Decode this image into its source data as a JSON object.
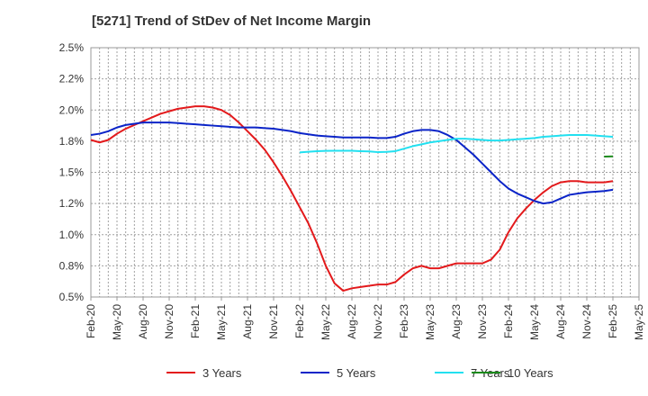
{
  "chart_data": {
    "type": "line",
    "title": "[5271]  Trend of StDev of Net Income Margin",
    "xlabel": "",
    "ylabel": "",
    "x_ticks": [
      "Feb-20",
      "May-20",
      "Aug-20",
      "Nov-20",
      "Feb-21",
      "May-21",
      "Aug-21",
      "Nov-21",
      "Feb-22",
      "May-22",
      "Aug-22",
      "Nov-22",
      "Feb-23",
      "May-23",
      "Aug-23",
      "Nov-23",
      "Feb-24",
      "May-24",
      "Aug-24",
      "Nov-24",
      "Feb-25",
      "May-25"
    ],
    "y_ticks": [
      "0.5%",
      "0.8%",
      "1.0%",
      "1.2%",
      "1.5%",
      "1.8%",
      "2.0%",
      "2.2%",
      "2.5%"
    ],
    "ylim": [
      0.5,
      2.5
    ],
    "grid": true,
    "legend_position": "bottom",
    "series": [
      {
        "name": "3 Years",
        "color": "#e31a1c",
        "points": [
          [
            "Feb-20",
            1.76
          ],
          [
            "Mar-20",
            1.74
          ],
          [
            "Apr-20",
            1.76
          ],
          [
            "May-20",
            1.81
          ],
          [
            "Jun-20",
            1.85
          ],
          [
            "Jul-20",
            1.88
          ],
          [
            "Aug-20",
            1.91
          ],
          [
            "Sep-20",
            1.94
          ],
          [
            "Oct-20",
            1.97
          ],
          [
            "Nov-20",
            1.99
          ],
          [
            "Dec-20",
            2.01
          ],
          [
            "Jan-21",
            2.02
          ],
          [
            "Feb-21",
            2.03
          ],
          [
            "Mar-21",
            2.03
          ],
          [
            "Apr-21",
            2.02
          ],
          [
            "May-21",
            2.0
          ],
          [
            "Jun-21",
            1.96
          ],
          [
            "Jul-21",
            1.9
          ],
          [
            "Aug-21",
            1.83
          ],
          [
            "Sep-21",
            1.76
          ],
          [
            "Oct-21",
            1.68
          ],
          [
            "Nov-21",
            1.58
          ],
          [
            "Dec-21",
            1.47
          ],
          [
            "Jan-22",
            1.35
          ],
          [
            "Feb-22",
            1.22
          ],
          [
            "Mar-22",
            1.09
          ],
          [
            "Apr-22",
            0.93
          ],
          [
            "May-22",
            0.75
          ],
          [
            "Jun-22",
            0.61
          ],
          [
            "Jul-22",
            0.55
          ],
          [
            "Aug-22",
            0.57
          ],
          [
            "Sep-22",
            0.58
          ],
          [
            "Oct-22",
            0.59
          ],
          [
            "Nov-22",
            0.6
          ],
          [
            "Dec-22",
            0.6
          ],
          [
            "Jan-23",
            0.62
          ],
          [
            "Feb-23",
            0.68
          ],
          [
            "Mar-23",
            0.73
          ],
          [
            "Apr-23",
            0.75
          ],
          [
            "May-23",
            0.73
          ],
          [
            "Jun-23",
            0.73
          ],
          [
            "Jul-23",
            0.75
          ],
          [
            "Aug-23",
            0.77
          ],
          [
            "Sep-23",
            0.77
          ],
          [
            "Oct-23",
            0.77
          ],
          [
            "Nov-23",
            0.77
          ],
          [
            "Dec-23",
            0.8
          ],
          [
            "Jan-24",
            0.88
          ],
          [
            "Feb-24",
            1.02
          ],
          [
            "Mar-24",
            1.13
          ],
          [
            "Apr-24",
            1.21
          ],
          [
            "May-24",
            1.28
          ],
          [
            "Jun-24",
            1.34
          ],
          [
            "Jul-24",
            1.39
          ],
          [
            "Aug-24",
            1.42
          ],
          [
            "Sep-24",
            1.43
          ],
          [
            "Oct-24",
            1.43
          ],
          [
            "Nov-24",
            1.42
          ],
          [
            "Dec-24",
            1.42
          ],
          [
            "Jan-25",
            1.42
          ],
          [
            "Feb-25",
            1.43
          ]
        ]
      },
      {
        "name": "5 Years",
        "color": "#0b24c8",
        "points": [
          [
            "Feb-20",
            1.8
          ],
          [
            "Mar-20",
            1.81
          ],
          [
            "Apr-20",
            1.83
          ],
          [
            "May-20",
            1.86
          ],
          [
            "Jun-20",
            1.88
          ],
          [
            "Jul-20",
            1.89
          ],
          [
            "Aug-20",
            1.9
          ],
          [
            "Sep-20",
            1.9
          ],
          [
            "Oct-20",
            1.9
          ],
          [
            "Nov-20",
            1.9
          ],
          [
            "Dec-20",
            1.895
          ],
          [
            "Jan-21",
            1.89
          ],
          [
            "Feb-21",
            1.885
          ],
          [
            "Mar-21",
            1.88
          ],
          [
            "Apr-21",
            1.875
          ],
          [
            "May-21",
            1.87
          ],
          [
            "Jun-21",
            1.865
          ],
          [
            "Jul-21",
            1.86
          ],
          [
            "Aug-21",
            1.86
          ],
          [
            "Sep-21",
            1.86
          ],
          [
            "Oct-21",
            1.855
          ],
          [
            "Nov-21",
            1.85
          ],
          [
            "Dec-21",
            1.84
          ],
          [
            "Jan-22",
            1.83
          ],
          [
            "Feb-22",
            1.815
          ],
          [
            "Mar-22",
            1.805
          ],
          [
            "Apr-22",
            1.795
          ],
          [
            "May-22",
            1.79
          ],
          [
            "Jun-22",
            1.785
          ],
          [
            "Jul-22",
            1.78
          ],
          [
            "Aug-22",
            1.78
          ],
          [
            "Sep-22",
            1.78
          ],
          [
            "Oct-22",
            1.78
          ],
          [
            "Nov-22",
            1.775
          ],
          [
            "Dec-22",
            1.775
          ],
          [
            "Jan-23",
            1.785
          ],
          [
            "Feb-23",
            1.81
          ],
          [
            "Mar-23",
            1.83
          ],
          [
            "Apr-23",
            1.84
          ],
          [
            "May-23",
            1.84
          ],
          [
            "Jun-23",
            1.83
          ],
          [
            "Jul-23",
            1.8
          ],
          [
            "Aug-23",
            1.76
          ],
          [
            "Sep-23",
            1.7
          ],
          [
            "Oct-23",
            1.64
          ],
          [
            "Nov-23",
            1.57
          ],
          [
            "Dec-23",
            1.5
          ],
          [
            "Jan-24",
            1.43
          ],
          [
            "Feb-24",
            1.37
          ],
          [
            "Mar-24",
            1.33
          ],
          [
            "Apr-24",
            1.3
          ],
          [
            "May-24",
            1.27
          ],
          [
            "Jun-24",
            1.25
          ],
          [
            "Jul-24",
            1.26
          ],
          [
            "Aug-24",
            1.29
          ],
          [
            "Sep-24",
            1.32
          ],
          [
            "Oct-24",
            1.33
          ],
          [
            "Nov-24",
            1.34
          ],
          [
            "Dec-24",
            1.345
          ],
          [
            "Jan-25",
            1.35
          ],
          [
            "Feb-25",
            1.36
          ]
        ]
      },
      {
        "name": "7 Years",
        "color": "#22e0f0",
        "points": [
          [
            "Feb-22",
            1.66
          ],
          [
            "Mar-22",
            1.665
          ],
          [
            "Apr-22",
            1.67
          ],
          [
            "May-22",
            1.672
          ],
          [
            "Jun-22",
            1.673
          ],
          [
            "Jul-22",
            1.673
          ],
          [
            "Aug-22",
            1.673
          ],
          [
            "Sep-22",
            1.67
          ],
          [
            "Oct-22",
            1.668
          ],
          [
            "Nov-22",
            1.662
          ],
          [
            "Dec-22",
            1.664
          ],
          [
            "Jan-23",
            1.67
          ],
          [
            "Feb-23",
            1.69
          ],
          [
            "Mar-23",
            1.71
          ],
          [
            "Apr-23",
            1.725
          ],
          [
            "May-23",
            1.74
          ],
          [
            "Jun-23",
            1.75
          ],
          [
            "Jul-23",
            1.76
          ],
          [
            "Aug-23",
            1.77
          ],
          [
            "Sep-23",
            1.77
          ],
          [
            "Oct-23",
            1.765
          ],
          [
            "Nov-23",
            1.76
          ],
          [
            "Dec-23",
            1.755
          ],
          [
            "Jan-24",
            1.755
          ],
          [
            "Feb-24",
            1.76
          ],
          [
            "Mar-24",
            1.765
          ],
          [
            "Apr-24",
            1.77
          ],
          [
            "May-24",
            1.775
          ],
          [
            "Jun-24",
            1.785
          ],
          [
            "Jul-24",
            1.79
          ],
          [
            "Aug-24",
            1.795
          ],
          [
            "Sep-24",
            1.8
          ],
          [
            "Oct-24",
            1.8
          ],
          [
            "Nov-24",
            1.8
          ],
          [
            "Dec-24",
            1.795
          ],
          [
            "Jan-25",
            1.79
          ],
          [
            "Feb-25",
            1.785
          ]
        ]
      },
      {
        "name": "10 Years",
        "color": "#1a8a1a",
        "points": [
          [
            "Jan-25",
            1.626
          ],
          [
            "Feb-25",
            1.628
          ]
        ]
      }
    ]
  }
}
